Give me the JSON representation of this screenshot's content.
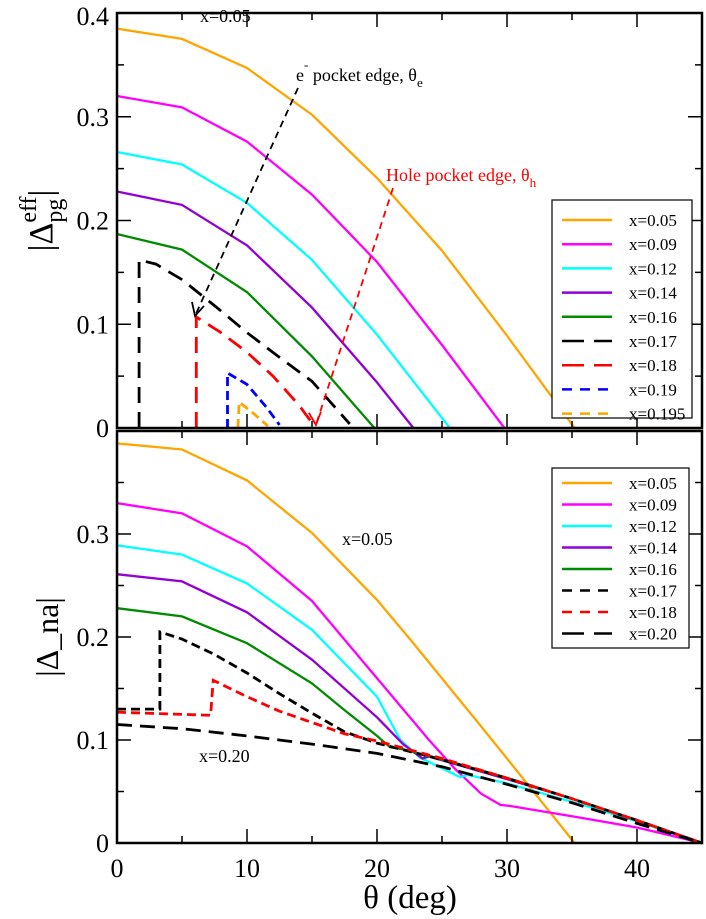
{
  "chart_data": [
    {
      "type": "line",
      "panel": "top",
      "ylabel": "|Δ_pg^eff|",
      "ylabel_main": "|Δ",
      "ylabel_sub": "pg",
      "ylabel_sup": "eff",
      "ylabel_end": "|",
      "xlim": [
        0,
        45
      ],
      "ylim": [
        0,
        0.4
      ],
      "xticks": [
        0,
        10,
        20,
        30,
        40
      ],
      "yticks": [
        0,
        0.1,
        0.2,
        0.3,
        0.4
      ],
      "ytick_labels": [
        "0",
        "0.1",
        "0.2",
        "0.3",
        "0.4"
      ],
      "grid": false,
      "legend_position": "right",
      "annotations": [
        {
          "text": "x=0.05",
          "color": "#000000"
        },
        {
          "text": "e",
          "sup": "-",
          "rest": " pocket edge, θ",
          "sub": "e",
          "color": "#000000",
          "arrow_to": [
            6.0,
            0.108
          ]
        },
        {
          "text": "Hole pocket edge, θ",
          "sub": "h",
          "color": "#ff0000",
          "arrow_to": [
            15.3,
            0.003
          ]
        }
      ],
      "series": [
        {
          "name": "x=0.05",
          "color": "#ffa500",
          "style": "solid",
          "points": [
            [
              0,
              0.385
            ],
            [
              5,
              0.375
            ],
            [
              10,
              0.347
            ],
            [
              15,
              0.302
            ],
            [
              20,
              0.241
            ],
            [
              25,
              0.171
            ],
            [
              30,
              0.089
            ],
            [
              35.2,
              0
            ],
            [
              45,
              0
            ]
          ]
        },
        {
          "name": "x=0.09",
          "color": "#ff00ff",
          "style": "solid",
          "points": [
            [
              0,
              0.32
            ],
            [
              5,
              0.309
            ],
            [
              10,
              0.276
            ],
            [
              15,
              0.225
            ],
            [
              20,
              0.16
            ],
            [
              25,
              0.08
            ],
            [
              29.8,
              0
            ]
          ]
        },
        {
          "name": "x=0.12",
          "color": "#00ffff",
          "style": "solid",
          "points": [
            [
              0,
              0.266
            ],
            [
              5,
              0.254
            ],
            [
              10,
              0.217
            ],
            [
              15,
              0.162
            ],
            [
              20,
              0.09
            ],
            [
              25.6,
              0
            ]
          ]
        },
        {
          "name": "x=0.14",
          "color": "#9400d3",
          "style": "solid",
          "points": [
            [
              0,
              0.228
            ],
            [
              5,
              0.215
            ],
            [
              10,
              0.176
            ],
            [
              15,
              0.116
            ],
            [
              20,
              0.044
            ],
            [
              22.8,
              0
            ]
          ]
        },
        {
          "name": "x=0.16",
          "color": "#008b00",
          "style": "solid",
          "points": [
            [
              0,
              0.187
            ],
            [
              5,
              0.172
            ],
            [
              10,
              0.131
            ],
            [
              15,
              0.069
            ],
            [
              19.8,
              0
            ]
          ]
        },
        {
          "name": "x=0.17",
          "color": "#000000",
          "style": "long-dashed",
          "points": [
            [
              1.7,
              0
            ],
            [
              1.7,
              0.162
            ],
            [
              3,
              0.158
            ],
            [
              5,
              0.143
            ],
            [
              7.5,
              0.118
            ],
            [
              10,
              0.092
            ],
            [
              12.5,
              0.068
            ],
            [
              15,
              0.045
            ],
            [
              17.9,
              0.004
            ]
          ]
        },
        {
          "name": "x=0.18",
          "color": "#ff0000",
          "style": "long-dashed",
          "points": [
            [
              6.1,
              0
            ],
            [
              6.1,
              0.107
            ],
            [
              8,
              0.092
            ],
            [
              10,
              0.073
            ],
            [
              12,
              0.05
            ],
            [
              14,
              0.022
            ],
            [
              15,
              0.005
            ]
          ]
        },
        {
          "name": "x=0.19",
          "color": "#0000ff",
          "style": "dashed",
          "points": [
            [
              8.5,
              0
            ],
            [
              8.5,
              0.053
            ],
            [
              10,
              0.042
            ],
            [
              11.5,
              0.02
            ],
            [
              12.5,
              0.003
            ]
          ]
        },
        {
          "name": "x=0.195",
          "color": "#ffa500",
          "style": "dashed",
          "points": [
            [
              9.3,
              0
            ],
            [
              9.4,
              0.025
            ],
            [
              10.5,
              0.014
            ],
            [
              11.6,
              0.002
            ]
          ]
        }
      ]
    },
    {
      "type": "line",
      "panel": "bottom",
      "xlabel": "θ (deg)",
      "ylabel": "|Δ_na|",
      "ylabel_main": "|Δ",
      "ylabel_sub": "na",
      "ylabel_end": "|",
      "xlim": [
        0,
        45
      ],
      "ylim": [
        0,
        0.4
      ],
      "xticks": [
        0,
        10,
        20,
        30,
        40
      ],
      "yticks": [
        0,
        0.1,
        0.2,
        0.3
      ],
      "ytick_labels": [
        "0",
        "0.1",
        "0.2",
        "0.3"
      ],
      "grid": false,
      "legend_position": "top-right",
      "annotations": [
        {
          "text": "x=0.05",
          "color": "#000000"
        },
        {
          "text": "x=0.20",
          "color": "#000000"
        }
      ],
      "series": [
        {
          "name": "x=0.05",
          "color": "#ffa500",
          "style": "solid",
          "points": [
            [
              0,
              0.388
            ],
            [
              5,
              0.382
            ],
            [
              10,
              0.352
            ],
            [
              15,
              0.301
            ],
            [
              20,
              0.236
            ],
            [
              22.6,
              0.197
            ],
            [
              27.7,
              0.118
            ],
            [
              30,
              0.082
            ],
            [
              35.2,
              0
            ]
          ]
        },
        {
          "name": "x=0.09",
          "color": "#ff00ff",
          "style": "solid",
          "points": [
            [
              0,
              0.33
            ],
            [
              5,
              0.32
            ],
            [
              10,
              0.288
            ],
            [
              15,
              0.235
            ],
            [
              20,
              0.16
            ],
            [
              22,
              0.13
            ],
            [
              24,
              0.1
            ],
            [
              26,
              0.072
            ],
            [
              28,
              0.048
            ],
            [
              29.5,
              0.037
            ],
            [
              30.2,
              0.036
            ],
            [
              35,
              0.026
            ],
            [
              40,
              0.015
            ],
            [
              45,
              0
            ]
          ]
        },
        {
          "name": "x=0.12",
          "color": "#00ffff",
          "style": "solid",
          "points": [
            [
              0,
              0.289
            ],
            [
              5,
              0.28
            ],
            [
              10,
              0.252
            ],
            [
              15,
              0.207
            ],
            [
              20,
              0.142
            ],
            [
              21.8,
              0.1
            ],
            [
              23.3,
              0.083
            ],
            [
              26.4,
              0.064
            ],
            [
              27,
              0.066
            ],
            [
              30,
              0.058
            ],
            [
              35,
              0.04
            ],
            [
              40,
              0.021
            ],
            [
              45,
              0
            ]
          ]
        },
        {
          "name": "x=0.14",
          "color": "#9400d3",
          "style": "solid",
          "points": [
            [
              0,
              0.261
            ],
            [
              5,
              0.254
            ],
            [
              10,
              0.224
            ],
            [
              15,
              0.178
            ],
            [
              20,
              0.122
            ],
            [
              22,
              0.096
            ],
            [
              23.5,
              0.082
            ],
            [
              24,
              0.084
            ],
            [
              30,
              0.062
            ],
            [
              35,
              0.043
            ],
            [
              40,
              0.022
            ],
            [
              45,
              0
            ]
          ]
        },
        {
          "name": "x=0.16",
          "color": "#008b00",
          "style": "solid",
          "points": [
            [
              0,
              0.228
            ],
            [
              5,
              0.22
            ],
            [
              10,
              0.194
            ],
            [
              15,
              0.155
            ],
            [
              17.5,
              0.129
            ],
            [
              20,
              0.104
            ],
            [
              21,
              0.093
            ],
            [
              22,
              0.091
            ],
            [
              25,
              0.081
            ],
            [
              30,
              0.063
            ],
            [
              35,
              0.043
            ],
            [
              40,
              0.022
            ],
            [
              45,
              0
            ]
          ]
        },
        {
          "name": "x=0.17",
          "color": "#000000",
          "style": "dashed",
          "points": [
            [
              0,
              0.13
            ],
            [
              3.3,
              0.13
            ],
            [
              3.3,
              0.205
            ],
            [
              5,
              0.198
            ],
            [
              7.5,
              0.183
            ],
            [
              10,
              0.165
            ],
            [
              12.5,
              0.145
            ],
            [
              15,
              0.126
            ],
            [
              17.5,
              0.108
            ],
            [
              20,
              0.097
            ],
            [
              25,
              0.081
            ],
            [
              30,
              0.063
            ],
            [
              35,
              0.043
            ],
            [
              40,
              0.022
            ],
            [
              45,
              0
            ]
          ]
        },
        {
          "name": "x=0.18",
          "color": "#ff0000",
          "style": "dashed",
          "points": [
            [
              0,
              0.127
            ],
            [
              7.2,
              0.124
            ],
            [
              7.4,
              0.158
            ],
            [
              10,
              0.142
            ],
            [
              12.5,
              0.128
            ],
            [
              15,
              0.117
            ],
            [
              17.5,
              0.106
            ],
            [
              20,
              0.099
            ],
            [
              25,
              0.082
            ],
            [
              30,
              0.063
            ],
            [
              35,
              0.043
            ],
            [
              40,
              0.022
            ],
            [
              45,
              0
            ]
          ]
        },
        {
          "name": "x=0.20",
          "color": "#000000",
          "style": "long-dashed",
          "points": [
            [
              0,
              0.115
            ],
            [
              5,
              0.111
            ],
            [
              10,
              0.104
            ],
            [
              15,
              0.096
            ],
            [
              20,
              0.087
            ],
            [
              25,
              0.074
            ],
            [
              30,
              0.057
            ],
            [
              35,
              0.039
            ],
            [
              40,
              0.019
            ],
            [
              45,
              0
            ]
          ]
        }
      ]
    }
  ]
}
